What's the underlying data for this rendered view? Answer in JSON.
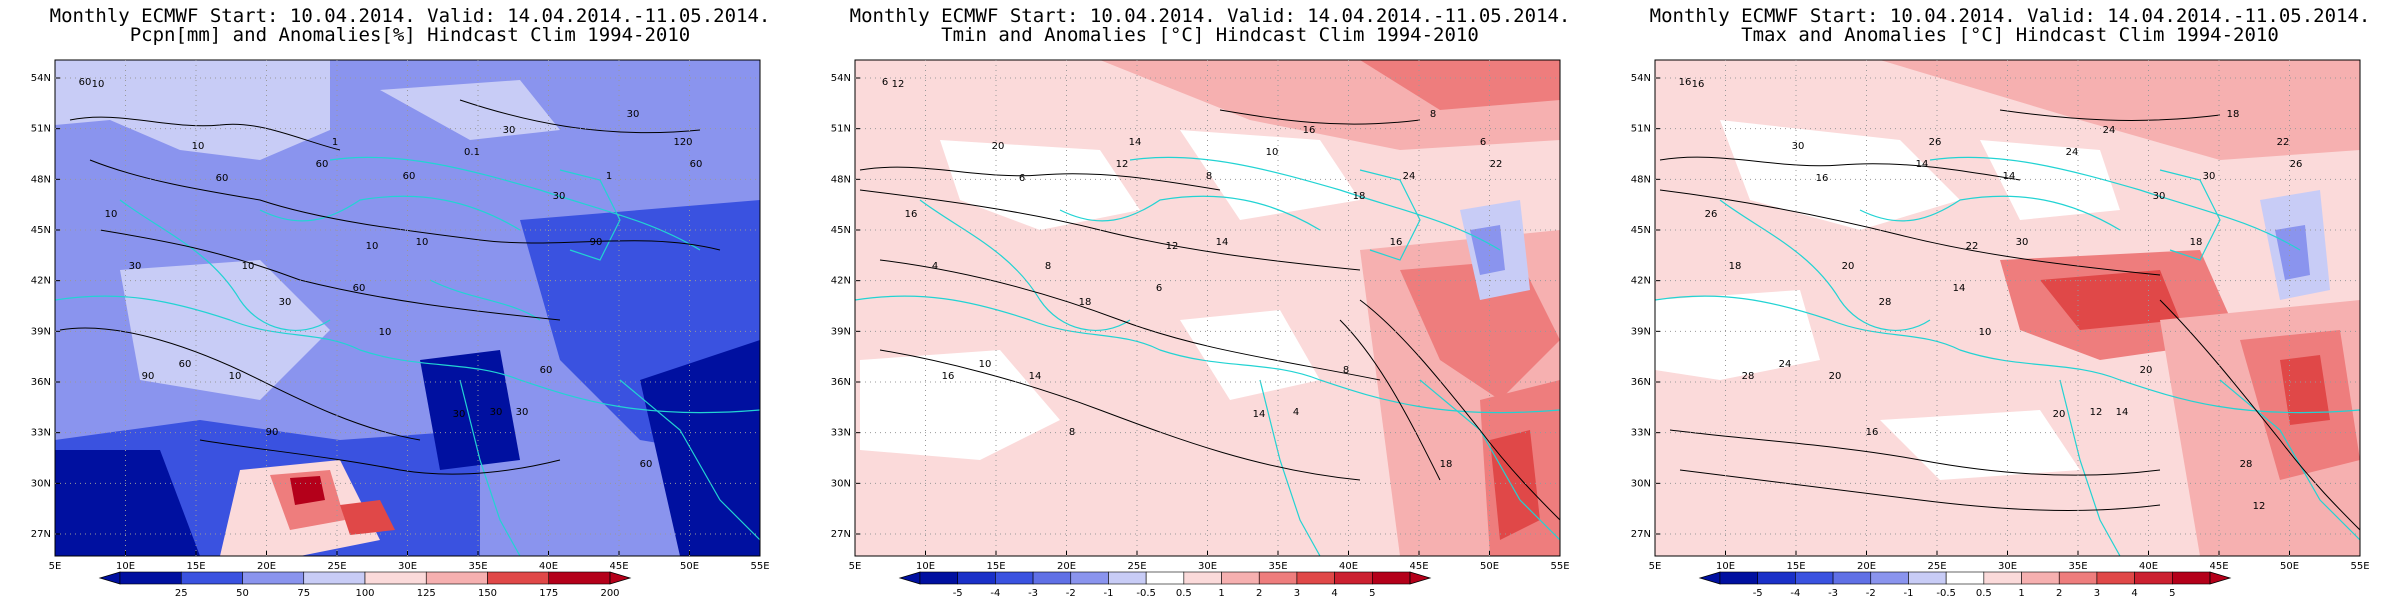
{
  "panels": [
    {
      "title_line1": "Monthly ECMWF Start: 10.04.2014. Valid: 14.04.2014.-11.05.2014.",
      "title_line2": "Pcpn[mm] and Anomalies[%] Hindcast Clim 1994-2010",
      "colorbar_labels": [
        "25",
        "50",
        "75",
        "100",
        "125",
        "150",
        "175",
        "200"
      ],
      "contour_labels": [
        "60",
        "60",
        "60",
        "30",
        "30",
        "30",
        "90",
        "60",
        "60",
        "120",
        "60",
        "60",
        "30",
        "90",
        "10",
        "10",
        "10",
        "30",
        "60",
        "90",
        "30",
        "10",
        "30",
        "60",
        "10",
        "1",
        "0.1",
        "1",
        "10",
        "10",
        "10",
        "30"
      ]
    },
    {
      "title_line1": "Monthly ECMWF Start: 10.04.2014. Valid: 14.04.2014.-11.05.2014.",
      "title_line2": "Tmin and Anomalies [°C] Hindcast Clim 1994-2010",
      "colorbar_labels": [
        "-5",
        "-4",
        "-3",
        "-2",
        "-1",
        "-0.5",
        "0.5",
        "1",
        "2",
        "3",
        "4",
        "5"
      ],
      "contour_labels": [
        "6",
        "6",
        "6",
        "4",
        "8",
        "4",
        "8",
        "8",
        "8",
        "6",
        "10",
        "12",
        "14",
        "16",
        "12",
        "14",
        "12",
        "16",
        "18",
        "16",
        "18",
        "14",
        "18",
        "22",
        "20",
        "14",
        "10",
        "24",
        "16",
        "8"
      ]
    },
    {
      "title_line1": "Monthly ECMWF Start: 10.04.2014. Valid: 14.04.2014.-11.05.2014.",
      "title_line2": "Tmax and Anomalies [°C] Hindcast Clim 1994-2010",
      "colorbar_labels": [
        "-5",
        "-4",
        "-3",
        "-2",
        "-1",
        "-0.5",
        "0.5",
        "1",
        "2",
        "3",
        "4",
        "5"
      ],
      "contour_labels": [
        "16",
        "16",
        "14",
        "12",
        "18",
        "18",
        "16",
        "14",
        "20",
        "22",
        "24",
        "14",
        "20",
        "18",
        "16",
        "20",
        "22",
        "24",
        "28",
        "28",
        "28",
        "30",
        "30",
        "26",
        "30",
        "26",
        "24",
        "30",
        "26",
        "20",
        "10",
        "14",
        "12"
      ]
    }
  ],
  "lat_labels": [
    "54N",
    "51N",
    "48N",
    "45N",
    "42N",
    "39N",
    "36N",
    "33N",
    "30N",
    "27N"
  ],
  "lon_labels": [
    "5E",
    "10E",
    "15E",
    "20E",
    "25E",
    "30E",
    "35E",
    "40E",
    "45E",
    "50E",
    "55E"
  ],
  "colors": {
    "coastline": "#22d3d3",
    "contour": "#000000",
    "deep_blue": "#0010a0",
    "blue": "#3a52e0",
    "mid_blue": "#8a94ee",
    "light_blue": "#c8ccf6",
    "pale_red": "#fbdada",
    "light_red": "#f6b0b0",
    "mid_red": "#ee7d7d",
    "red": "#e04848",
    "deep_red": "#b4001a"
  }
}
